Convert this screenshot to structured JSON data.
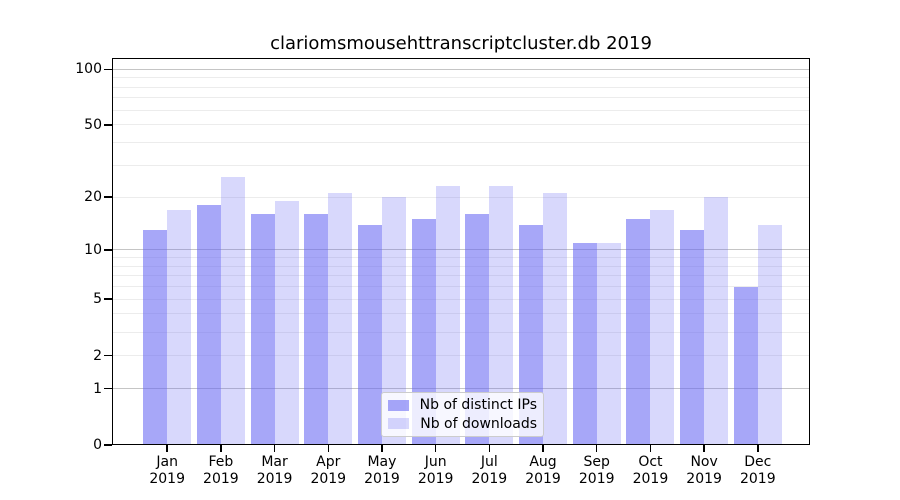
{
  "title": "clariomsmousehttranscriptcluster.db 2019",
  "chart_data": {
    "type": "bar",
    "title": "clariomsmousehttranscriptcluster.db 2019",
    "categories": [
      "Jan",
      "Feb",
      "Mar",
      "Apr",
      "May",
      "Jun",
      "Jul",
      "Aug",
      "Sep",
      "Oct",
      "Nov",
      "Dec"
    ],
    "x_year_label": "2019",
    "series": [
      {
        "name": "Nb of distinct IPs",
        "color": "rgba(100,100,243,0.57)",
        "values": [
          13,
          18,
          16,
          16,
          14,
          15,
          16,
          14,
          11,
          15,
          13,
          6
        ]
      },
      {
        "name": "Nb of downloads",
        "color": "rgba(100,100,243,0.25)",
        "values": [
          17,
          26,
          19,
          21,
          20,
          23,
          23,
          21,
          11,
          17,
          20,
          14
        ]
      }
    ],
    "yscale": "log1p",
    "ylim": [
      0,
      115
    ],
    "yticks": [
      100,
      50,
      20,
      10,
      5,
      2,
      1,
      0
    ],
    "grid_major": [
      1,
      10,
      100
    ],
    "grid_minor": [
      2,
      3,
      4,
      5,
      6,
      7,
      8,
      9,
      20,
      30,
      40,
      50,
      60,
      70,
      80,
      90
    ],
    "legend_position": "lower center",
    "grid": true
  },
  "colors": {
    "bar_distinct_ips": "rgba(100,100,243,0.57)",
    "bar_downloads": "rgba(100,100,243,0.25)",
    "grid_major": "#c5c5c5",
    "grid_minor": "#ececec",
    "axis": "#000000",
    "background": "#ffffff"
  }
}
